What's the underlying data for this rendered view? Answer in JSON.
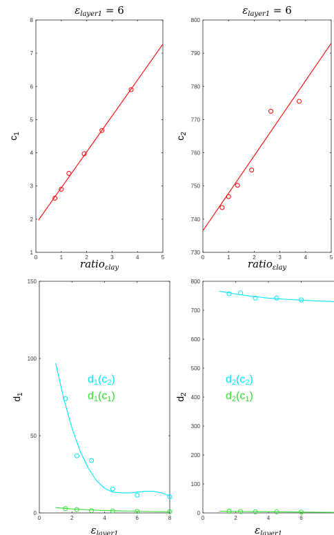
{
  "chart_data": [
    {
      "type": "scatter",
      "title_main": "ε",
      "title_sub": "layer1",
      "title_tail": " = 6",
      "ylabel_main": "c",
      "ylabel_sub": "1",
      "xlabel_main": "ratio",
      "xlabel_sub": "εlay",
      "xlim": [
        0,
        5
      ],
      "ylim": [
        1,
        8
      ],
      "xticks": [
        0,
        1,
        2,
        3,
        4,
        5
      ],
      "yticks": [
        1,
        2,
        3,
        4,
        5,
        6,
        7,
        8
      ],
      "grid": false,
      "series": [
        {
          "kind": "points",
          "color": "#ff0000",
          "x": [
            0.75,
            1.0,
            1.3,
            1.9,
            2.6,
            3.75
          ],
          "y": [
            2.63,
            2.9,
            3.38,
            3.97,
            4.67,
            5.9
          ]
        },
        {
          "kind": "fit",
          "color": "#ff0000",
          "x": [
            0.1,
            5.0
          ],
          "y": [
            1.97,
            7.27
          ]
        }
      ]
    },
    {
      "type": "scatter",
      "title_main": "ε",
      "title_sub": "layer1",
      "title_tail": " = 6",
      "ylabel_main": "c",
      "ylabel_sub": "2",
      "xlabel_main": "ratio",
      "xlabel_sub": "εlay",
      "xlim": [
        0,
        5
      ],
      "ylim": [
        730,
        800
      ],
      "xticks": [
        0,
        1,
        2,
        3,
        4,
        5
      ],
      "yticks": [
        730,
        740,
        750,
        760,
        770,
        780,
        790,
        800
      ],
      "grid": false,
      "series": [
        {
          "kind": "points",
          "color": "#ff0000",
          "x": [
            0.75,
            1.0,
            1.35,
            1.9,
            2.65,
            3.75
          ],
          "y": [
            743.5,
            746.8,
            750.2,
            754.8,
            772.5,
            775.5
          ]
        },
        {
          "kind": "fit",
          "color": "#ff0000",
          "x": [
            0.0,
            5.0
          ],
          "y": [
            736.5,
            793.0
          ]
        }
      ]
    },
    {
      "type": "scatter",
      "ylabel_main": "d",
      "ylabel_sub": "1",
      "xlabel_main": "ε",
      "xlabel_sub": "layer1",
      "xlim": [
        0,
        8
      ],
      "ylim": [
        0,
        150
      ],
      "xticks": [
        0,
        2,
        4,
        6,
        8
      ],
      "yticks": [
        0,
        50,
        100,
        150
      ],
      "grid": false,
      "legend": {
        "placement": "center",
        "entries": [
          {
            "main": "d",
            "sub": "1",
            "tail": "(c",
            "sub2": "2",
            "end": ")",
            "color": "#00e5ff"
          },
          {
            "main": "d",
            "sub": "1",
            "tail": "(c",
            "sub2": "1",
            "end": ")",
            "color": "#33dd33"
          }
        ]
      },
      "series": [
        {
          "kind": "points",
          "color": "#00e5ff",
          "x": [
            1.6,
            2.3,
            3.2,
            4.5,
            6.0,
            8.0
          ],
          "y": [
            74,
            37,
            34,
            15.5,
            11.5,
            10.5
          ]
        },
        {
          "kind": "fit",
          "color": "#00e5ff",
          "x": [
            1.0,
            1.5,
            2.0,
            2.5,
            3.0,
            3.5,
            4.0,
            4.5,
            5.0,
            5.5,
            6.0,
            6.5,
            7.0,
            7.5,
            8.0
          ],
          "y": [
            97,
            74,
            55,
            40,
            29,
            21,
            16,
            13.5,
            13,
            13,
            13.5,
            14,
            14,
            13,
            11
          ]
        },
        {
          "kind": "points",
          "color": "#33dd33",
          "x": [
            1.6,
            2.3,
            3.2,
            4.5,
            6.0,
            8.0
          ],
          "y": [
            2.8,
            2.2,
            1.5,
            1.2,
            1.0,
            0.8
          ]
        },
        {
          "kind": "fit",
          "color": "#33dd33",
          "x": [
            1.0,
            2.0,
            3.0,
            4.0,
            5.0,
            6.0,
            7.0,
            8.0
          ],
          "y": [
            3.5,
            2.6,
            2.0,
            1.6,
            1.3,
            1.1,
            0.9,
            0.8
          ]
        }
      ]
    },
    {
      "type": "scatter",
      "ylabel_main": "d",
      "ylabel_sub": "2",
      "xlabel_main": "ε",
      "xlabel_sub": "layer1",
      "xlim": [
        0,
        8
      ],
      "ylim": [
        0,
        800
      ],
      "xticks": [
        0,
        2,
        4,
        6
      ],
      "yticks": [
        0,
        100,
        200,
        300,
        400,
        500,
        600,
        700,
        800
      ],
      "grid": false,
      "legend": {
        "placement": "center",
        "entries": [
          {
            "main": "d",
            "sub": "2",
            "tail": "(c",
            "sub2": "2",
            "end": ")",
            "color": "#00e5ff"
          },
          {
            "main": "d",
            "sub": "2",
            "tail": "(c",
            "sub2": "1",
            "end": ")",
            "color": "#33dd33"
          }
        ]
      },
      "series": [
        {
          "kind": "points",
          "color": "#00e5ff",
          "x": [
            1.6,
            2.3,
            3.2,
            4.5,
            6.0
          ],
          "y": [
            757,
            760,
            742,
            742,
            736
          ]
        },
        {
          "kind": "fit",
          "color": "#00e5ff",
          "x": [
            1.0,
            2.0,
            3.0,
            4.0,
            5.0,
            6.0,
            7.0,
            8.0
          ],
          "y": [
            766,
            756,
            748,
            742,
            738,
            735,
            732,
            730
          ]
        },
        {
          "kind": "points",
          "color": "#33dd33",
          "x": [
            1.6,
            2.3,
            3.2,
            4.5,
            6.0
          ],
          "y": [
            6,
            5,
            4,
            4,
            3
          ]
        },
        {
          "kind": "fit",
          "color": "#33dd33",
          "x": [
            1.0,
            8.0
          ],
          "y": [
            6,
            2
          ]
        }
      ]
    }
  ]
}
